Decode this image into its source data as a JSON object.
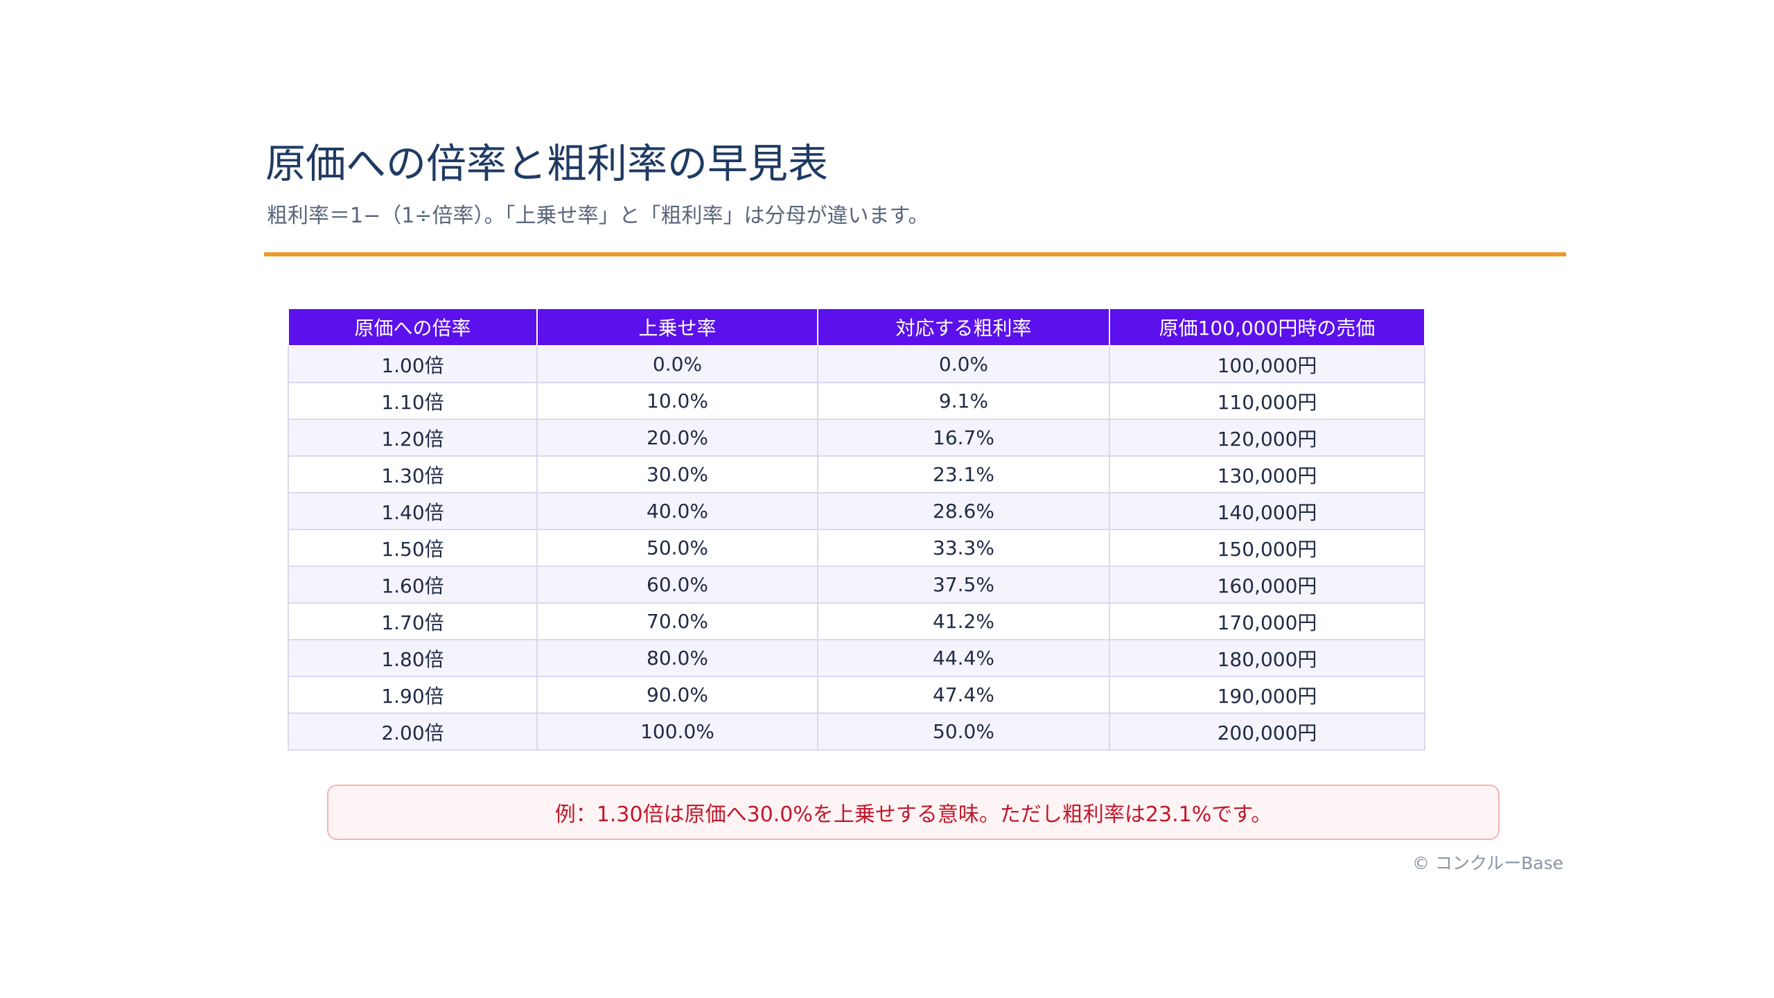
{
  "title": "原価への倍率と粗利率の早見表",
  "subtitle": "粗利率＝1−（1÷倍率）。「上乗せ率」と「粗利率」は分母が違います。",
  "table": {
    "headers": [
      "原価への倍率",
      "上乗せ率",
      "対応する粗利率",
      "原価100,000円時の売価"
    ],
    "rows": [
      [
        "1.00倍",
        "0.0%",
        "0.0%",
        "100,000円"
      ],
      [
        "1.10倍",
        "10.0%",
        "9.1%",
        "110,000円"
      ],
      [
        "1.20倍",
        "20.0%",
        "16.7%",
        "120,000円"
      ],
      [
        "1.30倍",
        "30.0%",
        "23.1%",
        "130,000円"
      ],
      [
        "1.40倍",
        "40.0%",
        "28.6%",
        "140,000円"
      ],
      [
        "1.50倍",
        "50.0%",
        "33.3%",
        "150,000円"
      ],
      [
        "1.60倍",
        "60.0%",
        "37.5%",
        "160,000円"
      ],
      [
        "1.70倍",
        "70.0%",
        "41.2%",
        "170,000円"
      ],
      [
        "1.80倍",
        "80.0%",
        "44.4%",
        "180,000円"
      ],
      [
        "1.90倍",
        "90.0%",
        "47.4%",
        "190,000円"
      ],
      [
        "2.00倍",
        "100.0%",
        "50.0%",
        "200,000円"
      ]
    ]
  },
  "note": "例：1.30倍は原価へ30.0%を上乗せする意味。ただし粗利率は23.1%です。",
  "copyright": "© コンクルーBase",
  "colors": {
    "accent_rule": "#ec9a2c",
    "header_bg": "#5b10ec",
    "title": "#1f3b63",
    "note_text": "#c0182b"
  }
}
